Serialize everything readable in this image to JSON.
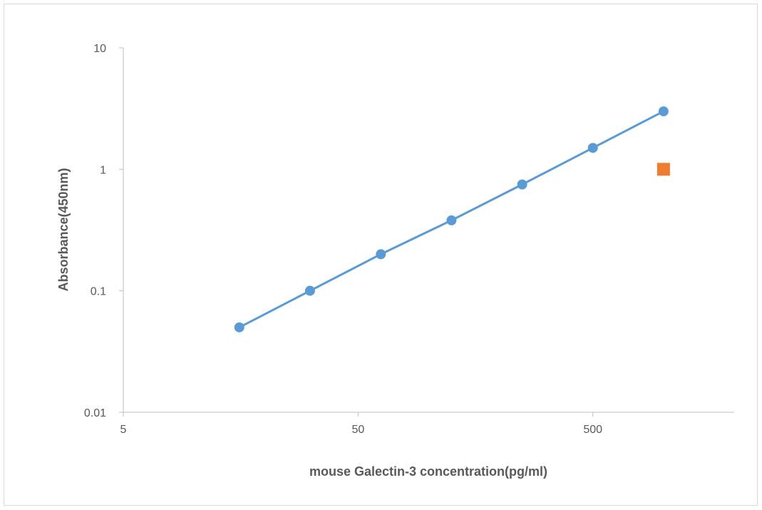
{
  "chart_data": {
    "type": "scatter",
    "xlabel": "mouse Galectin-3 concentration(pg/ml)",
    "ylabel": "Absorbance(450nm)",
    "xscale": "log",
    "yscale": "log",
    "xlim": [
      5,
      2000
    ],
    "ylim": [
      0.01,
      10
    ],
    "x_ticks": [
      5,
      50,
      500
    ],
    "x_tick_labels": [
      "5",
      "50",
      "500"
    ],
    "y_ticks": [
      0.01,
      0.1,
      1,
      10
    ],
    "y_tick_labels": [
      "0.01",
      "0.1",
      "1",
      "10"
    ],
    "grid": false,
    "legend": "none",
    "series": [
      {
        "marker": "circle",
        "line": true,
        "color": "#5b9bd5",
        "points": [
          {
            "x": 15.6,
            "y": 0.05
          },
          {
            "x": 31.2,
            "y": 0.1
          },
          {
            "x": 62.5,
            "y": 0.2
          },
          {
            "x": 125,
            "y": 0.38
          },
          {
            "x": 250,
            "y": 0.75
          },
          {
            "x": 500,
            "y": 1.5
          },
          {
            "x": 1000,
            "y": 3.0
          }
        ]
      },
      {
        "marker": "square",
        "line": false,
        "color": "#ed7d31",
        "points": [
          {
            "x": 1000,
            "y": 1.0
          }
        ]
      }
    ]
  }
}
